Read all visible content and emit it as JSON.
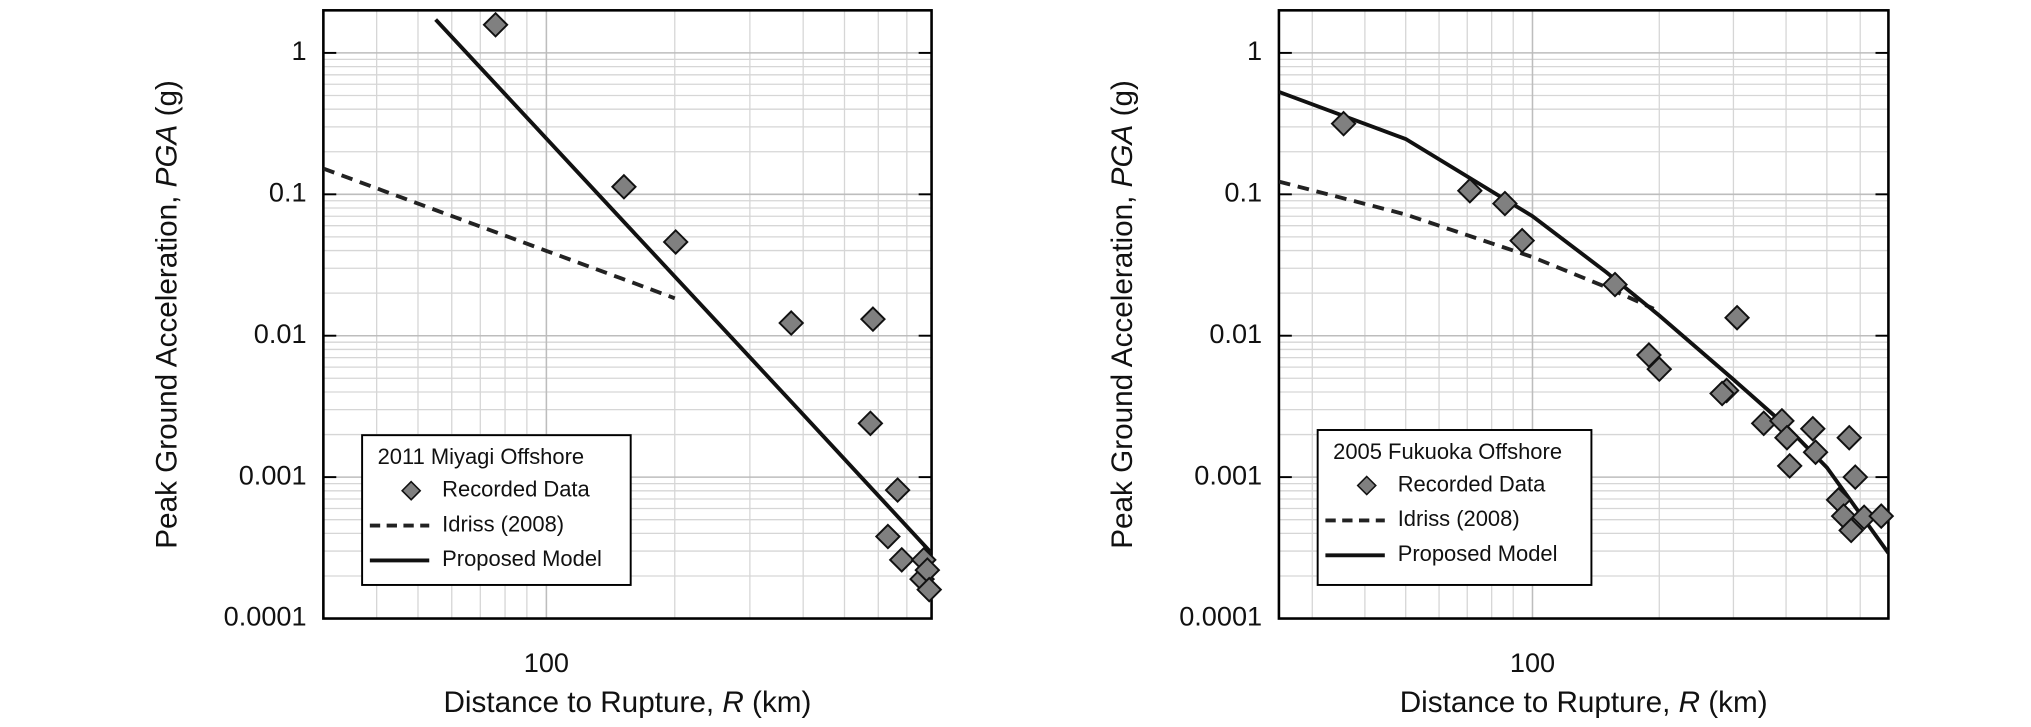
{
  "chart_data": [
    {
      "type": "scatter",
      "xscale": "log",
      "yscale": "log",
      "grid": true,
      "legend": "lower left",
      "legend_title": "2011 Miyagi Offshore",
      "xlabel": [
        "Distance to Rupture, ",
        "R",
        " (km)"
      ],
      "ylabel": [
        "Peak Ground Acceleration, ",
        "PGA",
        " (g)"
      ],
      "xlim": [
        30,
        800
      ],
      "ylim": [
        0.0001,
        2
      ],
      "xticks": [
        100
      ],
      "yticks": [
        0.0001,
        0.001,
        0.01,
        0.1,
        1
      ],
      "x_minor_ticks": [
        40,
        50,
        60,
        70,
        80,
        90,
        200,
        300,
        400,
        500,
        600,
        700
      ],
      "y_minor_ticks": [
        0.0002,
        0.0003,
        0.0004,
        0.0005,
        0.0006,
        0.0007,
        0.0008,
        0.0009,
        0.002,
        0.003,
        0.004,
        0.005,
        0.006,
        0.007,
        0.008,
        0.009,
        0.02,
        0.03,
        0.04,
        0.05,
        0.06,
        0.07,
        0.08,
        0.09,
        0.2,
        0.3,
        0.4,
        0.5,
        0.6,
        0.7,
        0.8,
        0.9
      ],
      "series": [
        {
          "name": "Recorded Data",
          "style": "markers",
          "color": "#808080",
          "x": [
            76,
            152,
            201,
            375,
            583,
            575,
            666,
            632,
            681,
            767,
            760,
            782,
            790
          ],
          "values": [
            1.58,
            0.113,
            0.046,
            0.0123,
            0.0131,
            0.0024,
            0.00081,
            0.00038,
            0.00026,
            0.00026,
            0.00019,
            0.00022,
            0.00016
          ]
        },
        {
          "name": "Idriss (2008)",
          "style": "dashed",
          "color": "#222222",
          "x": [
            30,
            50,
            100,
            150,
            200
          ],
          "values": [
            0.152,
            0.086,
            0.0398,
            0.0254,
            0.0184
          ]
        },
        {
          "name": "Proposed Model",
          "style": "solid",
          "color": "#111111",
          "x": [
            55,
            100,
            200,
            400,
            800
          ],
          "values": [
            1.72,
            0.248,
            0.0262,
            0.00277,
            0.00029
          ]
        }
      ]
    },
    {
      "type": "scatter",
      "xscale": "log",
      "yscale": "log",
      "grid": true,
      "legend": "lower left",
      "legend_title": "2005 Fukuoka Offshore",
      "xlabel": [
        "Distance to Rupture, ",
        "R",
        " (km)"
      ],
      "ylabel": [
        "Peak Ground Acceleration, ",
        "PGA",
        " (g)"
      ],
      "xlim": [
        25,
        700
      ],
      "ylim": [
        0.0001,
        2
      ],
      "xticks": [
        100
      ],
      "yticks": [
        0.0001,
        0.001,
        0.01,
        0.1,
        1
      ],
      "x_minor_ticks": [
        30,
        40,
        50,
        60,
        70,
        80,
        90,
        200,
        300,
        400,
        500,
        600
      ],
      "y_minor_ticks": [
        0.0002,
        0.0003,
        0.0004,
        0.0005,
        0.0006,
        0.0007,
        0.0008,
        0.0009,
        0.002,
        0.003,
        0.004,
        0.005,
        0.006,
        0.007,
        0.008,
        0.009,
        0.02,
        0.03,
        0.04,
        0.05,
        0.06,
        0.07,
        0.08,
        0.09,
        0.2,
        0.3,
        0.4,
        0.5,
        0.6,
        0.7,
        0.8,
        0.9
      ],
      "series": [
        {
          "name": "Recorded Data",
          "style": "markers",
          "color": "#808080",
          "x": [
            35.6,
            71,
            86,
            94.5,
            157,
            306,
            189,
            200,
            289,
            282,
            354,
            391,
            402,
            463,
            470,
            408,
            565,
            584,
            533,
            548,
            571,
            613,
            673
          ],
          "values": [
            0.316,
            0.106,
            0.086,
            0.047,
            0.023,
            0.0134,
            0.0073,
            0.0058,
            0.0041,
            0.0039,
            0.0024,
            0.0025,
            0.0019,
            0.0022,
            0.0015,
            0.0012,
            0.0019,
            0.001,
            0.00069,
            0.00053,
            0.00042,
            0.00052,
            0.00053
          ]
        },
        {
          "name": "Idriss (2008)",
          "style": "dashed",
          "color": "#222222",
          "x": [
            25,
            50,
            100,
            150,
            194
          ],
          "values": [
            0.123,
            0.072,
            0.036,
            0.022,
            0.0155
          ]
        },
        {
          "name": "Proposed Model",
          "style": "solid",
          "color": "#111111",
          "x": [
            25,
            50,
            100,
            150,
            200,
            300,
            400,
            500,
            700
          ],
          "values": [
            0.53,
            0.246,
            0.07,
            0.028,
            0.0139,
            0.0049,
            0.0023,
            0.00117,
            0.00029
          ]
        }
      ]
    }
  ]
}
